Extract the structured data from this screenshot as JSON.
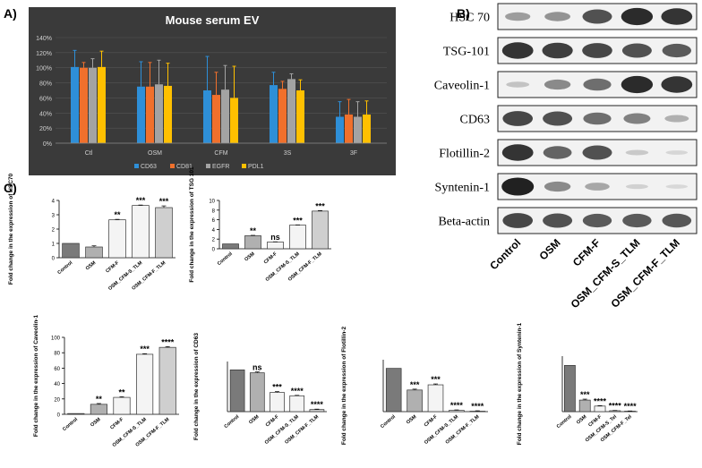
{
  "panels": {
    "a": "A)",
    "b": "B)",
    "c": "C)"
  },
  "chart_data": [
    {
      "id": "panelA",
      "type": "bar",
      "title": "Mouse serum EV",
      "categories": [
        "Ctl",
        "OSM",
        "CFM",
        "3S",
        "3F"
      ],
      "series": [
        {
          "name": "CD63",
          "color": "#2e8fd8",
          "values": [
            101,
            75,
            70,
            77,
            35
          ],
          "errors": [
            22,
            33,
            45,
            17,
            20
          ]
        },
        {
          "name": "CD81",
          "color": "#f0702c",
          "values": [
            100,
            75,
            64,
            72,
            38
          ],
          "errors": [
            7,
            32,
            30,
            10,
            20
          ]
        },
        {
          "name": "EGFR",
          "color": "#a3a3a3",
          "values": [
            100,
            78,
            71,
            85,
            35
          ],
          "errors": [
            12,
            32,
            32,
            7,
            20
          ]
        },
        {
          "name": "PDL1",
          "color": "#ffc000",
          "values": [
            101,
            76,
            60,
            70,
            38
          ],
          "errors": [
            21,
            30,
            42,
            14,
            18
          ]
        }
      ],
      "ylim": [
        0,
        140
      ],
      "yticks": [
        "0%",
        "20%",
        "40%",
        "60%",
        "80%",
        "100%",
        "120%",
        "140%"
      ],
      "ytick_values": [
        0,
        20,
        40,
        60,
        80,
        100,
        120,
        140
      ],
      "ylabel": "",
      "xlabel": ""
    },
    {
      "id": "hsc70",
      "type": "bar",
      "ylabel": "Fold change in the expression of HSC70",
      "categories": [
        "Control",
        "OSM",
        "CFM-F",
        "OSM_CFM-S_TLM",
        "OSM_CFM-F_TLM"
      ],
      "values": [
        1,
        0.75,
        2.65,
        3.65,
        3.5
      ],
      "errors": [
        0,
        0.08,
        0.03,
        0.03,
        0.12
      ],
      "annotations": [
        "",
        "",
        "**",
        "***",
        "***"
      ],
      "ylim": [
        0,
        4
      ],
      "yticks": [
        0,
        1,
        2,
        3,
        4
      ]
    },
    {
      "id": "tsg101",
      "type": "bar",
      "ylabel": "Fold change in the expression of TSG 101",
      "categories": [
        "Control",
        "OSM",
        "CFM-F",
        "OSM_CFM-S_TLM",
        "OSM_CFM-F_TLM"
      ],
      "values": [
        1,
        2.7,
        1.4,
        4.9,
        7.8
      ],
      "errors": [
        0,
        0.08,
        0.05,
        0.05,
        0.1
      ],
      "annotations": [
        "",
        "**",
        "ns",
        "***",
        "***"
      ],
      "ylim": [
        0,
        10
      ],
      "yticks": [
        0,
        2,
        4,
        6,
        8,
        10
      ]
    },
    {
      "id": "caveolin1",
      "type": "bar",
      "ylabel": "Fold change in the expression of Caveolin-1",
      "categories": [
        "Control",
        "OSM",
        "CFM-F",
        "OSM_CFM-S_TLM",
        "OSM_CFM-F_TLM"
      ],
      "values": [
        1,
        13,
        22,
        78,
        87
      ],
      "errors": [
        0,
        1,
        0.8,
        0.8,
        1
      ],
      "annotations": [
        "",
        "**",
        "**",
        "***",
        "****"
      ],
      "ylim": [
        0,
        100
      ],
      "yticks": [
        0,
        20,
        40,
        60,
        80,
        100
      ]
    },
    {
      "id": "cd63",
      "type": "bar",
      "ylabel": "Fold change in the expression of CD63",
      "categories": [
        "Control",
        "OSM",
        "CFM-F",
        "OSM_CFM-S_TLM",
        "OSM_CFM-F_TLM"
      ],
      "values": [
        1,
        0.93,
        0.46,
        0.38,
        0.05
      ],
      "errors": [
        0,
        0.02,
        0.02,
        0.01,
        0.01
      ],
      "annotations": [
        "",
        "ns",
        "***",
        "****",
        "****"
      ],
      "ylim": [
        0,
        1.2
      ],
      "yticks": []
    },
    {
      "id": "flotillin2",
      "type": "bar",
      "ylabel": "Fold change in the expression of Flotillin-2",
      "categories": [
        "Control",
        "OSM",
        "CFM-F",
        "OSM_CFM-S_TLM",
        "OSM_CFM-F_TLM"
      ],
      "values": [
        1,
        0.5,
        0.62,
        0.03,
        0.01
      ],
      "errors": [
        0,
        0.02,
        0.02,
        0.01,
        0.01
      ],
      "annotations": [
        "",
        "***",
        "***",
        "****",
        "****"
      ],
      "ylim": [
        0,
        1.2
      ],
      "yticks": []
    },
    {
      "id": "syntenin1",
      "type": "bar",
      "ylabel": "Fold change in the expression of Syntenin-1",
      "categories": [
        "Control",
        "OSM",
        "CFM-F",
        "OSM_CFM-S_Tel",
        "OSM_CFM-F_Tel"
      ],
      "values": [
        1,
        0.25,
        0.12,
        0.02,
        0.01
      ],
      "errors": [
        0,
        0.02,
        0.01,
        0.005,
        0.005
      ],
      "annotations": [
        "",
        "***",
        "****",
        "****",
        "****"
      ],
      "ylim": [
        0,
        1.2
      ],
      "yticks": []
    }
  ],
  "blot": {
    "rows": [
      "HSC 70",
      "TSG-101",
      "Caveolin-1",
      "CD63",
      "Flotillin-2",
      "Syntenin-1",
      "Beta-actin"
    ],
    "lanes": [
      "Control",
      "OSM",
      "CFM-F",
      "OSM_CFM-S_TLM",
      "OSM_CFM-F_TLM"
    ],
    "intensity": [
      [
        0.35,
        0.4,
        0.75,
        0.95,
        0.9
      ],
      [
        0.9,
        0.85,
        0.8,
        0.75,
        0.7
      ],
      [
        0.15,
        0.45,
        0.6,
        0.95,
        0.9
      ],
      [
        0.8,
        0.75,
        0.6,
        0.5,
        0.25
      ],
      [
        0.9,
        0.65,
        0.75,
        0.12,
        0.05
      ],
      [
        1.0,
        0.45,
        0.3,
        0.08,
        0.04
      ],
      [
        0.8,
        0.75,
        0.7,
        0.7,
        0.72
      ]
    ]
  }
}
